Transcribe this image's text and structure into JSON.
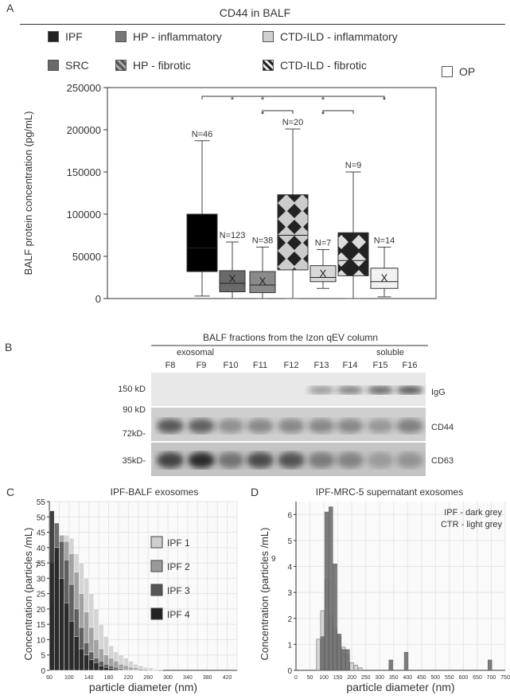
{
  "panels": {
    "A": {
      "letter": "A",
      "title": "CD44 in BALF",
      "legend": [
        {
          "label": "IPF",
          "color": "#222222",
          "pattern": "solid"
        },
        {
          "label": "HP - inflammatory",
          "color": "#777777",
          "pattern": "solid"
        },
        {
          "label": "CTD-ILD - inflammatory",
          "color": "#d0d0d0",
          "pattern": "solid"
        },
        {
          "label": "SRC",
          "color": "#6a6a6a",
          "pattern": "solid"
        },
        {
          "label": "HP - fibrotic",
          "color": "#666666",
          "pattern": "diamond-dark"
        },
        {
          "label": "CTD-ILD - fibrotic",
          "color": "#333333",
          "pattern": "diamond-light"
        },
        {
          "label": "OP",
          "color": "#ffffff",
          "pattern": "solid"
        }
      ]
    },
    "B": {
      "letter": "B",
      "title": "BALF fractions from the Izon qEV column",
      "exosomal_label": "exosomal",
      "soluble_label": "soluble",
      "lanes": [
        "F8",
        "F9",
        "F10",
        "F11",
        "F12",
        "F13",
        "F14",
        "F15",
        "F16"
      ],
      "markers": [
        "150 kD",
        "90 kD",
        "72kD-",
        "35kD-"
      ],
      "bands": [
        "IgG",
        "CD44",
        "CD63"
      ]
    },
    "C": {
      "letter": "C",
      "title": "IPF-BALF exosomes"
    },
    "D": {
      "letter": "D",
      "title": "IPF-MRC-5 supernatant exosomes",
      "note_lines": [
        "IPF - dark grey",
        "CTR - light grey"
      ]
    }
  },
  "chart_data": [
    {
      "type": "box",
      "id": "A",
      "title": "CD44 in BALF",
      "ylabel": "BALF protein concentration (pg/mL)",
      "ylim": [
        0,
        250000
      ],
      "yticks": [
        0,
        50000,
        100000,
        150000,
        200000,
        250000
      ],
      "ytick_labels": [
        "0",
        "50000",
        "100000",
        "150000",
        "200000",
        "250000"
      ],
      "groups": [
        {
          "name": "IPF",
          "n_label": "N=46",
          "min": 3000,
          "q1": 32000,
          "median": 60000,
          "q3": 100000,
          "max": 187000,
          "mean": null,
          "fill": "#000000",
          "pattern": "solid"
        },
        {
          "name": "SRC",
          "n_label": "N=123",
          "min": 0,
          "q1": 8000,
          "median": 18000,
          "q3": 33000,
          "max": 67000,
          "mean": 24000,
          "fill": "#6a6a6a",
          "pattern": "solid"
        },
        {
          "name": "HP - inflammatory",
          "n_label": "N=38",
          "min": 0,
          "q1": 7000,
          "median": 16000,
          "q3": 32000,
          "max": 61000,
          "mean": 21000,
          "fill": "#8a8a8a",
          "pattern": "solid"
        },
        {
          "name": "HP - fibrotic",
          "n_label": "N=20",
          "min": 0,
          "q1": 34000,
          "median": 75000,
          "q3": 123000,
          "max": 201000,
          "mean": null,
          "fill": "#666666",
          "pattern": "diamond-dark"
        },
        {
          "name": "CTD-ILD - inflammatory",
          "n_label": "N=7",
          "min": 12000,
          "q1": 20000,
          "median": 25000,
          "q3": 39000,
          "max": 58000,
          "mean": 30000,
          "fill": "#d8d8d8",
          "pattern": "solid"
        },
        {
          "name": "CTD-ILD - fibrotic",
          "n_label": "N=9",
          "min": 0,
          "q1": 27000,
          "median": 45000,
          "q3": 78000,
          "max": 150000,
          "mean": null,
          "fill": "#333333",
          "pattern": "diamond-light"
        },
        {
          "name": "OP",
          "n_label": "N=14",
          "min": 2000,
          "q1": 12000,
          "median": 20000,
          "q3": 36000,
          "max": 61000,
          "mean": 25000,
          "fill": "#f2f2f2",
          "pattern": "solid"
        }
      ],
      "significance_star": "*"
    },
    {
      "type": "histogram",
      "id": "C",
      "title": "IPF-BALF exosomes",
      "xlabel": "particle diameter (nm)",
      "ylabel": "Concentration (particles /mL)",
      "ylabel_exponent": "7",
      "xlim": [
        60,
        440
      ],
      "ylim": [
        0,
        55
      ],
      "xticks": [
        60,
        80,
        100,
        120,
        140,
        160,
        180,
        200,
        220,
        240,
        260,
        280,
        300,
        320,
        340,
        360,
        380,
        400,
        420,
        440
      ],
      "xtick_labels": [
        "60",
        "",
        "100",
        "",
        "140",
        "",
        "180",
        "",
        "220",
        "",
        "260",
        "",
        "300",
        "",
        "340",
        "",
        "380",
        "",
        "420",
        ""
      ],
      "yticks": [
        0,
        5,
        10,
        15,
        20,
        25,
        30,
        35,
        40,
        45,
        50,
        55
      ],
      "x": [
        65,
        75,
        85,
        95,
        105,
        115,
        125,
        135,
        145,
        155,
        165,
        175,
        185,
        195,
        205,
        215,
        225,
        235,
        245,
        255,
        265,
        275,
        285
      ],
      "series": [
        {
          "name": "IPF 1",
          "color": "#cfcfcf",
          "values": [
            18,
            28,
            40,
            44,
            43,
            38,
            35,
            30,
            25,
            20,
            15,
            11,
            8,
            6,
            5,
            4,
            3,
            2,
            1.5,
            1,
            0.8,
            0.5,
            0.3
          ]
        },
        {
          "name": "IPF 2",
          "color": "#9a9a9a",
          "values": [
            22,
            36,
            44,
            42,
            38,
            32,
            25,
            19,
            14,
            10,
            7,
            5,
            4,
            3,
            2,
            1.5,
            1,
            0.8,
            0.5,
            0.3,
            0.2,
            0.1,
            0
          ]
        },
        {
          "name": "IPF 3",
          "color": "#555555",
          "values": [
            35,
            48,
            42,
            36,
            28,
            20,
            14,
            9,
            6,
            4,
            3,
            2,
            1.5,
            1,
            0.6,
            0.4,
            0.2,
            0.1,
            0,
            0,
            0,
            0,
            0
          ]
        },
        {
          "name": "IPF 4",
          "color": "#222222",
          "values": [
            52,
            40,
            30,
            22,
            16,
            11,
            7,
            5,
            3.5,
            2.5,
            1.5,
            1,
            0.6,
            0.4,
            0.2,
            0.1,
            0,
            0,
            0,
            0,
            0,
            0,
            0
          ]
        }
      ]
    },
    {
      "type": "histogram",
      "id": "D",
      "title": "IPF-MRC-5 supernatant exosomes",
      "xlabel": "particle diameter (nm)",
      "ylabel": "Concentration (particles /mL)",
      "ylabel_exponent": "9",
      "xlim": [
        0,
        750
      ],
      "ylim": [
        0,
        6.5
      ],
      "xticks": [
        0,
        50,
        100,
        150,
        200,
        250,
        300,
        350,
        400,
        450,
        500,
        550,
        600,
        650,
        700,
        750
      ],
      "xtick_labels": [
        "0",
        "50",
        "100",
        "150",
        "200",
        "250",
        "300",
        "350",
        "400",
        "450",
        "500",
        "550",
        "600",
        "650",
        "700",
        "750"
      ],
      "yticks": [
        0,
        1,
        2,
        3,
        4,
        5,
        6
      ],
      "series": [
        {
          "name": "CTR",
          "color": "#cfcfcf",
          "x": [
            80,
            95,
            110,
            125,
            140,
            155,
            170,
            185,
            200,
            215,
            230
          ],
          "values": [
            1.2,
            2.3,
            3.5,
            2.1,
            1.6,
            1.3,
            0.9,
            0.6,
            0.3,
            0.2,
            0.1
          ]
        },
        {
          "name": "IPF",
          "color": "#6f6f6f",
          "x": [
            95,
            110,
            125,
            140,
            155,
            170,
            185,
            340,
            395,
            695
          ],
          "values": [
            1.3,
            6.1,
            6.3,
            4.1,
            1.4,
            0.8,
            0.8,
            0.4,
            0.7,
            0.4
          ]
        }
      ]
    }
  ]
}
